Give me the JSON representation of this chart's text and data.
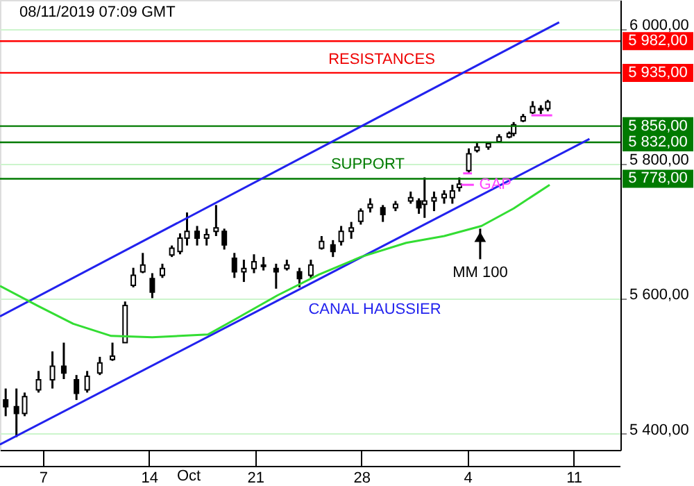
{
  "chart_data": {
    "type": "candlestick",
    "title": "08/11/2019 07:09 GMT",
    "color": "#000000",
    "x": [
      "2019-10-04T13:00",
      "2019-10-05T06:00",
      "2019-10-05T19:00",
      "2019-10-06T17:00",
      "2019-10-07T15:00",
      "2019-10-08T09:00",
      "2019-10-09T05:00",
      "2019-10-09T22:00",
      "2019-10-10T18:00",
      "2019-10-11T14:00",
      "2019-10-12T10:00",
      "2019-10-12T23:00",
      "2019-10-13T14:00",
      "2019-10-14T05:00",
      "2019-10-14T21:00",
      "2019-10-15T12:00",
      "2019-10-16T01:00",
      "2019-10-16T12:00",
      "2019-10-17T04:00",
      "2019-10-17T19:00",
      "2019-10-18T10:00",
      "2019-10-18T23:00",
      "2019-10-19T15:00",
      "2019-10-20T06:00",
      "2019-10-20T22:00",
      "2019-10-21T13:00",
      "2019-10-22T09:00",
      "2019-10-23T02:00",
      "2019-10-23T22:00",
      "2019-10-24T16:00",
      "2019-10-25T09:00",
      "2019-10-26T03:00",
      "2019-10-26T16:00",
      "2019-10-27T08:00",
      "2019-10-27T23:00",
      "2019-10-28T14:00",
      "2019-10-29T10:00",
      "2019-10-30T06:00",
      "2019-10-31T06:00",
      "2019-10-31T19:00",
      "2019-11-01T04:00",
      "2019-11-01T19:00",
      "2019-11-02T11:00",
      "2019-11-03T00:00",
      "2019-11-03T11:00",
      "2019-11-04T02:00",
      "2019-11-04T15:00",
      "2019-11-05T09:00",
      "2019-11-06T02:00",
      "2019-11-06T18:00",
      "2019-11-07T01:00",
      "2019-11-07T16:00",
      "2019-11-08T07:00",
      "2019-11-08T20:00",
      "2019-11-09T07:00"
    ],
    "ohlc": [
      [
        5450,
        5467,
        5426,
        5440
      ],
      [
        5440,
        5467,
        5395,
        5430
      ],
      [
        5430,
        5461,
        5426,
        5455
      ],
      [
        5465,
        5493,
        5461,
        5480
      ],
      [
        5480,
        5522,
        5467,
        5500
      ],
      [
        5500,
        5535,
        5481,
        5490
      ],
      [
        5480,
        5487,
        5450,
        5460
      ],
      [
        5465,
        5493,
        5461,
        5485
      ],
      [
        5490,
        5514,
        5487,
        5505
      ],
      [
        5510,
        5535,
        5508,
        5515
      ],
      [
        5535,
        5596,
        5535,
        5590
      ],
      [
        5620,
        5646,
        5617,
        5635
      ],
      [
        5640,
        5668,
        5638,
        5650
      ],
      [
        5630,
        5638,
        5601,
        5610
      ],
      [
        5635,
        5652,
        5631,
        5645
      ],
      [
        5665,
        5679,
        5662,
        5675
      ],
      [
        5670,
        5697,
        5666,
        5690
      ],
      [
        5690,
        5728,
        5679,
        5700
      ],
      [
        5700,
        5708,
        5679,
        5690
      ],
      [
        5690,
        5704,
        5679,
        5695
      ],
      [
        5700,
        5739,
        5693,
        5705
      ],
      [
        5700,
        5704,
        5673,
        5680
      ],
      [
        5660,
        5668,
        5631,
        5640
      ],
      [
        5640,
        5658,
        5625,
        5645
      ],
      [
        5645,
        5666,
        5638,
        5655
      ],
      [
        5650,
        5662,
        5642,
        5648
      ],
      [
        5645,
        5652,
        5615,
        5640
      ],
      [
        5645,
        5658,
        5642,
        5650
      ],
      [
        5640,
        5646,
        5617,
        5630
      ],
      [
        5635,
        5658,
        5631,
        5650
      ],
      [
        5675,
        5693,
        5673,
        5685
      ],
      [
        5680,
        5687,
        5662,
        5670
      ],
      [
        5685,
        5708,
        5679,
        5700
      ],
      [
        5700,
        5714,
        5689,
        5705
      ],
      [
        5715,
        5734,
        5710,
        5730
      ],
      [
        5735,
        5749,
        5728,
        5740
      ],
      [
        5735,
        5739,
        5714,
        5725
      ],
      [
        5735,
        5745,
        5730,
        5740
      ],
      [
        5745,
        5759,
        5741,
        5750
      ],
      [
        5745,
        5749,
        5726,
        5735
      ],
      [
        5740,
        5780,
        5720,
        5745
      ],
      [
        5745,
        5759,
        5730,
        5750
      ],
      [
        5750,
        5761,
        5741,
        5755
      ],
      [
        5750,
        5769,
        5741,
        5760
      ],
      [
        5765,
        5780,
        5759,
        5770
      ],
      [
        5790,
        5823,
        5786,
        5815
      ],
      [
        5820,
        5833,
        5817,
        5825
      ],
      [
        5825,
        5833,
        5821,
        5830
      ],
      [
        5833,
        5844,
        5831,
        5840
      ],
      [
        5840,
        5848,
        5838,
        5845
      ],
      [
        5845,
        5862,
        5841,
        5858
      ],
      [
        5864,
        5874,
        5862,
        5870
      ],
      [
        5876,
        5893,
        5874,
        5885
      ],
      [
        5880,
        5887,
        5874,
        5882
      ],
      [
        5882,
        5895,
        5878,
        5892
      ]
    ],
    "series": [
      {
        "type": "line",
        "color": "#2222ee",
        "x": [
          "2019-10-04T04:00",
          "2019-11-10T01:00"
        ],
        "values": [
          5574,
          6010
        ]
      },
      {
        "type": "line",
        "color": "#2222ee",
        "x": [
          "2019-10-04T04:00",
          "2019-11-12T01:00"
        ],
        "values": [
          5384,
          5837
        ]
      },
      {
        "type": "line",
        "color": "#33dd33",
        "x": [
          "2019-10-04T04:00",
          "2019-10-06T15:00",
          "2019-10-09T00:00",
          "2019-10-11T12:00",
          "2019-10-14T05:00",
          "2019-10-17T21:00",
          "2019-10-19T17:00",
          "2019-10-22T11:00",
          "2019-10-25T05:00",
          "2019-10-27T23:00",
          "2019-10-30T23:00",
          "2019-11-02T11:00",
          "2019-11-04T22:00",
          "2019-11-07T01:00",
          "2019-11-09T10:00"
        ],
        "values": [
          5619,
          5590,
          5563,
          5545,
          5543,
          5547,
          5570,
          5605,
          5636,
          5662,
          5683,
          5693,
          5708,
          5734,
          5769
        ]
      },
      {
        "type": "line",
        "color": "#ff44ff",
        "x": [
          "2019-11-03T14:00",
          "2019-11-04T10:00"
        ],
        "values": [
          5769,
          5769
        ]
      },
      {
        "type": "line",
        "color": "#ff44ff",
        "x": [
          "2019-11-03T17:00",
          "2019-11-04T07:00"
        ],
        "values": [
          5786,
          5786
        ]
      },
      {
        "type": "line",
        "color": "#ff44ff",
        "x": [
          "2019-11-08T05:00",
          "2019-11-09T14:00"
        ],
        "values": [
          5872,
          5872
        ]
      }
    ],
    "ref_lines": [
      {
        "axis": "y",
        "value": 5982,
        "label": "5 982,00",
        "color": "#ff0000"
      },
      {
        "axis": "y",
        "value": 5935,
        "label": "5 935,00",
        "color": "#ff0000"
      },
      {
        "axis": "y",
        "value": 5856,
        "label": "5 856,00",
        "color": "#007a00"
      },
      {
        "axis": "y",
        "value": 5832,
        "label": "5 832,00",
        "color": "#007a00"
      },
      {
        "axis": "y",
        "value": 5778,
        "label": "5 778,00",
        "color": "#007a00"
      }
    ],
    "annotations": [
      "RESISTANCES",
      {
        "text": "SUPPORT",
        "x": "2019-10-28T10:00",
        "y": 5778
      },
      "CANAL HAUSSIER",
      {
        "text": "MM 100",
        "x": "2019-11-04T20:00",
        "y": 5704
      },
      {
        "text": "GAP",
        "x": "2019-11-05T20:00",
        "y": 5769
      },
      "Oct"
    ],
    "xlim": [
      "2019-10-04T04:00",
      "2019-11-14T02:00"
    ],
    "ylim": [
      5376,
      6043
    ],
    "xticks": [
      {
        "value": "2019-10-07",
        "label": "7"
      },
      {
        "value": "2019-10-14",
        "label": "14"
      },
      {
        "value": "2019-10-21",
        "label": "21"
      },
      {
        "value": "2019-10-28",
        "label": "28"
      },
      {
        "value": "2019-11-04",
        "label": "4"
      },
      {
        "value": "2019-11-11",
        "label": "11"
      }
    ],
    "yticks": [
      {
        "value": 5400,
        "label": "5 400,00"
      },
      {
        "value": 5600,
        "label": "5 600,00"
      },
      {
        "value": 5800,
        "label": "5 800,00"
      },
      {
        "value": 6000,
        "label": "6 000,00"
      }
    ],
    "grid": "y",
    "line_style": "solid"
  }
}
